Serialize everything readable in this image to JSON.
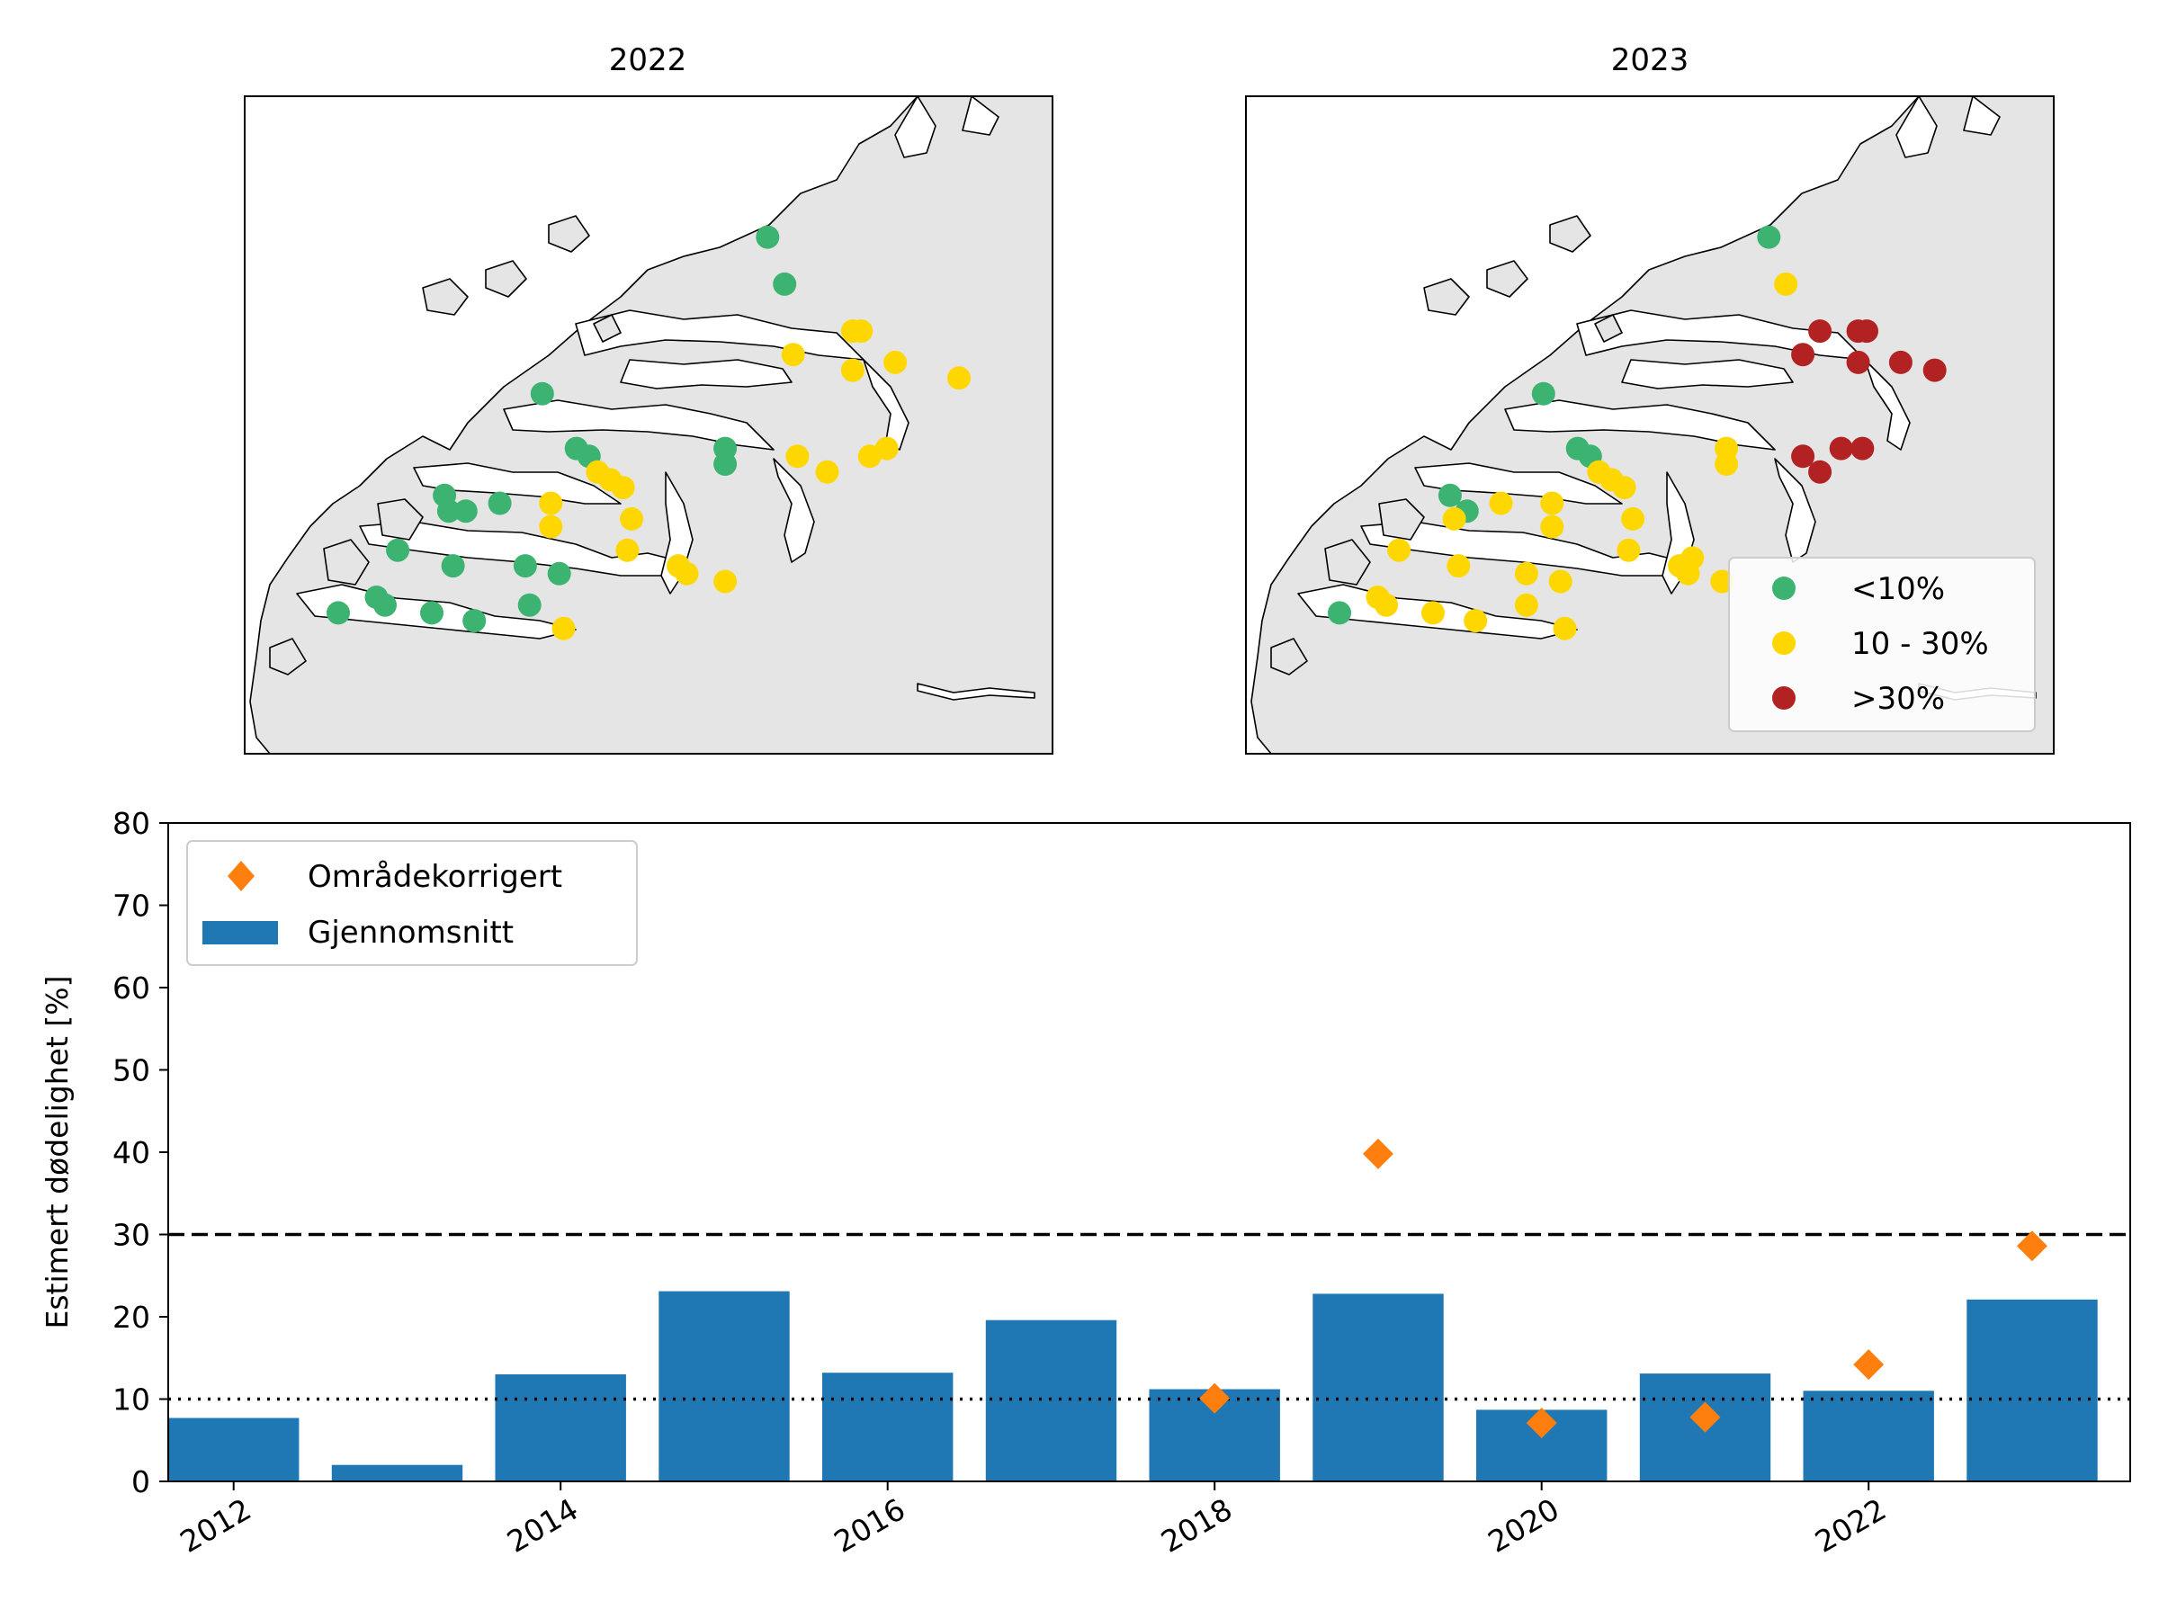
{
  "colors": {
    "green": "#3cb371",
    "yellow": "#ffd700",
    "red": "#b22222",
    "bar": "#1f77b4",
    "diamond": "#ff7f0e",
    "land": "#e5e5e5"
  },
  "maps": [
    {
      "title": "2022",
      "sites": [
        {
          "lon": 5.58,
          "lat": 62.78,
          "cat": "low"
        },
        {
          "lon": 5.62,
          "lat": 62.72,
          "cat": "low"
        },
        {
          "lon": 5.05,
          "lat": 62.58,
          "cat": "low"
        },
        {
          "lon": 5.13,
          "lat": 62.51,
          "cat": "low"
        },
        {
          "lon": 5.16,
          "lat": 62.5,
          "cat": "low"
        },
        {
          "lon": 4.82,
          "lat": 62.45,
          "cat": "low"
        },
        {
          "lon": 4.83,
          "lat": 62.43,
          "cat": "low"
        },
        {
          "lon": 4.87,
          "lat": 62.43,
          "cat": "low"
        },
        {
          "lon": 4.95,
          "lat": 62.44,
          "cat": "low"
        },
        {
          "lon": 4.71,
          "lat": 62.38,
          "cat": "low"
        },
        {
          "lon": 4.84,
          "lat": 62.36,
          "cat": "low"
        },
        {
          "lon": 5.01,
          "lat": 62.36,
          "cat": "low"
        },
        {
          "lon": 5.09,
          "lat": 62.35,
          "cat": "low"
        },
        {
          "lon": 4.66,
          "lat": 62.32,
          "cat": "low"
        },
        {
          "lon": 4.68,
          "lat": 62.31,
          "cat": "low"
        },
        {
          "lon": 4.79,
          "lat": 62.3,
          "cat": "low"
        },
        {
          "lon": 4.57,
          "lat": 62.3,
          "cat": "low"
        },
        {
          "lon": 4.89,
          "lat": 62.29,
          "cat": "low"
        },
        {
          "lon": 5.02,
          "lat": 62.31,
          "cat": "low"
        },
        {
          "lon": 5.48,
          "lat": 62.51,
          "cat": "low"
        },
        {
          "lon": 5.48,
          "lat": 62.49,
          "cat": "low"
        },
        {
          "lon": 5.78,
          "lat": 62.66,
          "cat": "mid"
        },
        {
          "lon": 5.8,
          "lat": 62.66,
          "cat": "mid"
        },
        {
          "lon": 5.64,
          "lat": 62.63,
          "cat": "mid"
        },
        {
          "lon": 5.78,
          "lat": 62.61,
          "cat": "mid"
        },
        {
          "lon": 5.88,
          "lat": 62.62,
          "cat": "mid"
        },
        {
          "lon": 6.03,
          "lat": 62.6,
          "cat": "mid"
        },
        {
          "lon": 5.18,
          "lat": 62.48,
          "cat": "mid"
        },
        {
          "lon": 5.21,
          "lat": 62.47,
          "cat": "mid"
        },
        {
          "lon": 5.24,
          "lat": 62.46,
          "cat": "mid"
        },
        {
          "lon": 5.07,
          "lat": 62.44,
          "cat": "mid"
        },
        {
          "lon": 5.07,
          "lat": 62.41,
          "cat": "mid"
        },
        {
          "lon": 5.26,
          "lat": 62.42,
          "cat": "mid"
        },
        {
          "lon": 5.25,
          "lat": 62.38,
          "cat": "mid"
        },
        {
          "lon": 5.37,
          "lat": 62.36,
          "cat": "mid"
        },
        {
          "lon": 5.39,
          "lat": 62.35,
          "cat": "mid"
        },
        {
          "lon": 5.48,
          "lat": 62.34,
          "cat": "mid"
        },
        {
          "lon": 5.65,
          "lat": 62.5,
          "cat": "mid"
        },
        {
          "lon": 5.72,
          "lat": 62.48,
          "cat": "mid"
        },
        {
          "lon": 5.82,
          "lat": 62.5,
          "cat": "mid"
        },
        {
          "lon": 5.86,
          "lat": 62.51,
          "cat": "mid"
        },
        {
          "lon": 5.1,
          "lat": 62.28,
          "cat": "mid"
        }
      ]
    },
    {
      "title": "2023",
      "sites": [
        {
          "lon": 5.58,
          "lat": 62.78,
          "cat": "low"
        },
        {
          "lon": 5.05,
          "lat": 62.58,
          "cat": "low"
        },
        {
          "lon": 5.13,
          "lat": 62.51,
          "cat": "low"
        },
        {
          "lon": 5.16,
          "lat": 62.5,
          "cat": "low"
        },
        {
          "lon": 4.83,
          "lat": 62.45,
          "cat": "low"
        },
        {
          "lon": 4.87,
          "lat": 62.43,
          "cat": "low"
        },
        {
          "lon": 4.57,
          "lat": 62.3,
          "cat": "low"
        },
        {
          "lon": 5.62,
          "lat": 62.72,
          "cat": "mid"
        },
        {
          "lon": 5.18,
          "lat": 62.48,
          "cat": "mid"
        },
        {
          "lon": 5.21,
          "lat": 62.47,
          "cat": "mid"
        },
        {
          "lon": 5.24,
          "lat": 62.46,
          "cat": "mid"
        },
        {
          "lon": 4.95,
          "lat": 62.44,
          "cat": "mid"
        },
        {
          "lon": 4.84,
          "lat": 62.42,
          "cat": "mid"
        },
        {
          "lon": 5.07,
          "lat": 62.44,
          "cat": "mid"
        },
        {
          "lon": 5.07,
          "lat": 62.41,
          "cat": "mid"
        },
        {
          "lon": 5.26,
          "lat": 62.42,
          "cat": "mid"
        },
        {
          "lon": 5.25,
          "lat": 62.38,
          "cat": "mid"
        },
        {
          "lon": 4.71,
          "lat": 62.38,
          "cat": "mid"
        },
        {
          "lon": 4.85,
          "lat": 62.36,
          "cat": "mid"
        },
        {
          "lon": 5.01,
          "lat": 62.35,
          "cat": "mid"
        },
        {
          "lon": 5.09,
          "lat": 62.34,
          "cat": "mid"
        },
        {
          "lon": 4.66,
          "lat": 62.32,
          "cat": "mid"
        },
        {
          "lon": 4.68,
          "lat": 62.31,
          "cat": "mid"
        },
        {
          "lon": 4.79,
          "lat": 62.3,
          "cat": "mid"
        },
        {
          "lon": 4.89,
          "lat": 62.29,
          "cat": "mid"
        },
        {
          "lon": 5.01,
          "lat": 62.31,
          "cat": "mid"
        },
        {
          "lon": 5.1,
          "lat": 62.28,
          "cat": "mid"
        },
        {
          "lon": 5.48,
          "lat": 62.51,
          "cat": "mid"
        },
        {
          "lon": 5.48,
          "lat": 62.49,
          "cat": "mid"
        },
        {
          "lon": 5.37,
          "lat": 62.36,
          "cat": "mid"
        },
        {
          "lon": 5.39,
          "lat": 62.35,
          "cat": "mid"
        },
        {
          "lon": 5.4,
          "lat": 62.37,
          "cat": "mid"
        },
        {
          "lon": 5.47,
          "lat": 62.34,
          "cat": "mid"
        },
        {
          "lon": 5.7,
          "lat": 62.66,
          "cat": "high"
        },
        {
          "lon": 5.79,
          "lat": 62.66,
          "cat": "high"
        },
        {
          "lon": 5.81,
          "lat": 62.66,
          "cat": "high"
        },
        {
          "lon": 5.66,
          "lat": 62.63,
          "cat": "high"
        },
        {
          "lon": 5.79,
          "lat": 62.62,
          "cat": "high"
        },
        {
          "lon": 5.89,
          "lat": 62.62,
          "cat": "high"
        },
        {
          "lon": 5.97,
          "lat": 62.61,
          "cat": "high"
        },
        {
          "lon": 5.66,
          "lat": 62.5,
          "cat": "high"
        },
        {
          "lon": 5.7,
          "lat": 62.48,
          "cat": "high"
        },
        {
          "lon": 5.75,
          "lat": 62.51,
          "cat": "high"
        },
        {
          "lon": 5.8,
          "lat": 62.51,
          "cat": "high"
        }
      ],
      "legend": [
        {
          "label": "<10%",
          "cat": "low"
        },
        {
          "label": "10 - 30%",
          "cat": "mid"
        },
        {
          "label": ">30%",
          "cat": "high"
        }
      ]
    }
  ],
  "chart_data": {
    "type": "bar",
    "categories": [
      2012,
      2013,
      2014,
      2015,
      2016,
      2017,
      2018,
      2019,
      2020,
      2021,
      2022,
      2023
    ],
    "series": [
      {
        "name": "Gjennomsnitt",
        "kind": "bar",
        "values": [
          7.7,
          2.0,
          13.0,
          23.1,
          13.2,
          19.6,
          11.2,
          22.8,
          8.7,
          13.1,
          11.0,
          22.1
        ]
      },
      {
        "name": "Områdekorrigert",
        "kind": "marker",
        "x": [
          2018,
          2019,
          2020,
          2021,
          2022,
          2023
        ],
        "values": [
          10.1,
          39.8,
          7.1,
          7.8,
          14.2,
          28.6
        ]
      }
    ],
    "reference_lines": [
      {
        "y": 30,
        "style": "dashed"
      },
      {
        "y": 10,
        "style": "dotted"
      }
    ],
    "xticks": [
      2012,
      2014,
      2016,
      2018,
      2020,
      2022
    ],
    "yticks": [
      0,
      10,
      20,
      30,
      40,
      50,
      60,
      70,
      80
    ],
    "ylabel": "Estimert dødelighet [%]",
    "ylim": [
      0,
      80
    ],
    "xlim": [
      2011.6,
      2023.6
    ],
    "legend_position": "top-left"
  }
}
